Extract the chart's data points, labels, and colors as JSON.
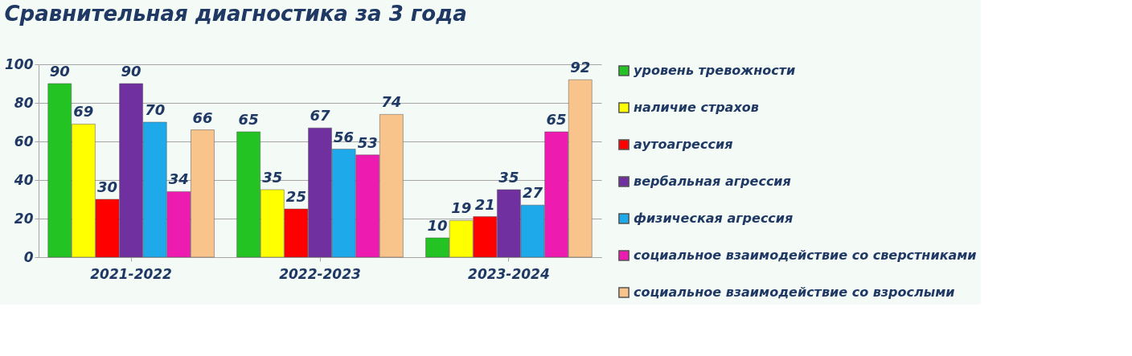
{
  "chart_data": {
    "type": "bar",
    "title": "Сравнительная диагностика за 3 года",
    "categories": [
      "2021-2022",
      "2022-2023",
      "2023-2024"
    ],
    "series": [
      {
        "name": "уровень тревожности",
        "color": "#22c322",
        "values": [
          90,
          65,
          10
        ]
      },
      {
        "name": "наличие страхов",
        "color": "#ffff00",
        "values": [
          69,
          35,
          19
        ]
      },
      {
        "name": "аутоагрессия",
        "color": "#ff0000",
        "values": [
          30,
          25,
          21
        ]
      },
      {
        "name": "вербальная агрессия",
        "color": "#7030a0",
        "values": [
          90,
          67,
          35
        ]
      },
      {
        "name": "физическая агрессия",
        "color": "#1eaaea",
        "values": [
          70,
          56,
          27
        ]
      },
      {
        "name": "социальное взаимодействие со сверстниками",
        "color": "#ee1bb0",
        "values": [
          34,
          53,
          65
        ]
      },
      {
        "name": "социальное взаимодействие со взрослыми",
        "color": "#f9c38c",
        "values": [
          66,
          74,
          92
        ]
      }
    ],
    "ylim": [
      0,
      100
    ],
    "yticks": [
      0,
      20,
      40,
      60,
      80,
      100
    ],
    "grid": "y",
    "legend": "right",
    "data_labels": true
  }
}
